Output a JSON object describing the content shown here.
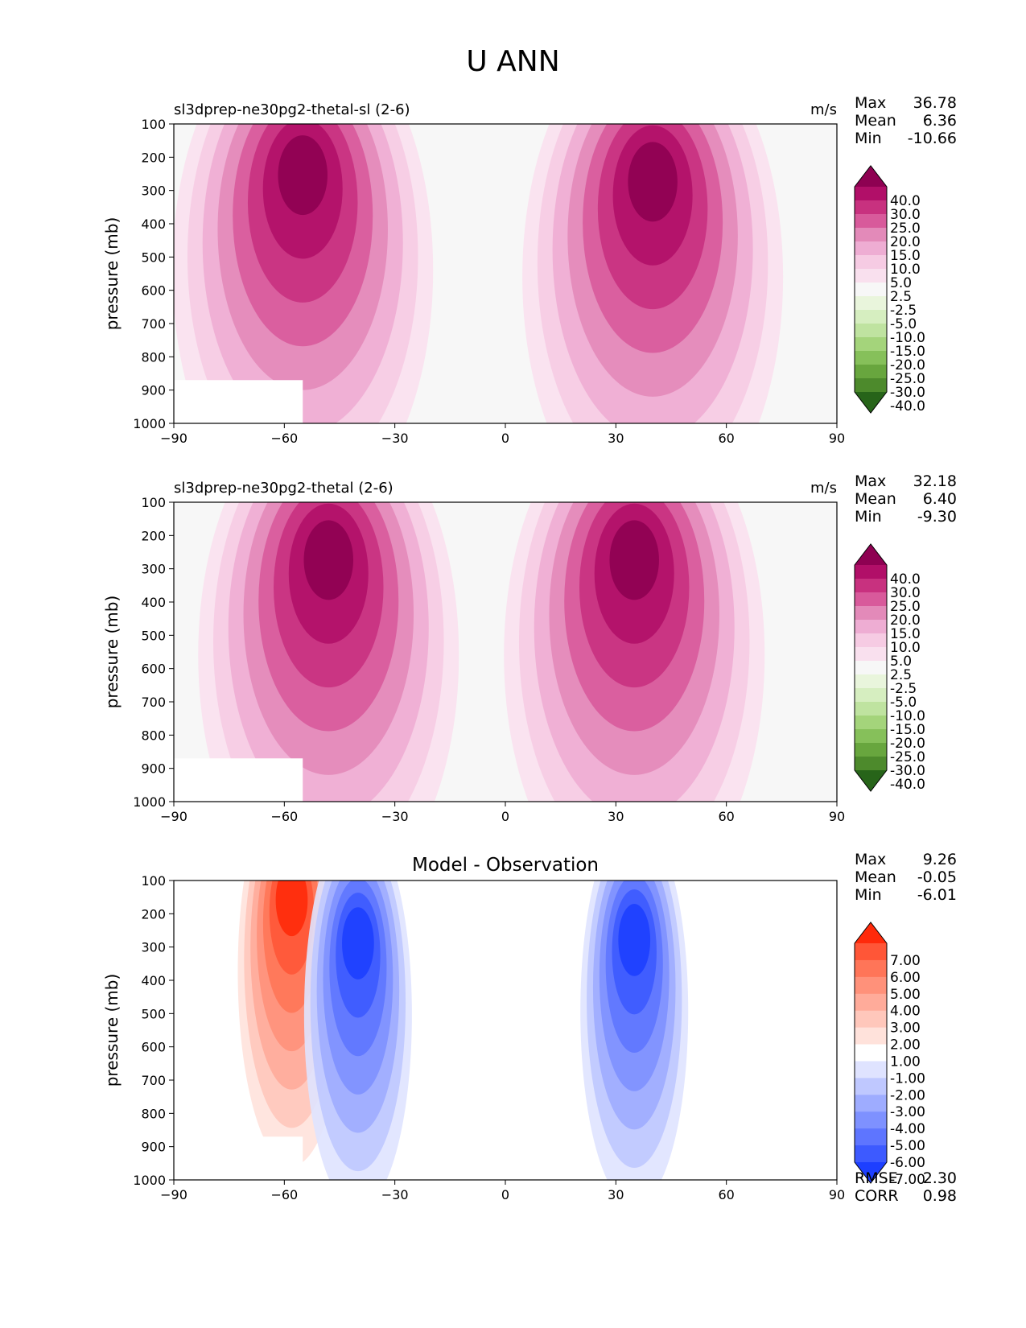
{
  "figure": {
    "title": "U ANN"
  },
  "chart_data": [
    {
      "type": "heatmap",
      "title": "sl3dprep-ne30pg2-thetal-sl (2-6)",
      "units": "m/s",
      "xlabel": "",
      "ylabel": "pressure (mb)",
      "xlim": [
        -90,
        90
      ],
      "ylim": [
        1000,
        100
      ],
      "xticks": [
        "−90",
        "−60",
        "−30",
        "0",
        "30",
        "60",
        "90"
      ],
      "yticks": [
        "100",
        "200",
        "300",
        "400",
        "500",
        "600",
        "700",
        "800",
        "900",
        "1000"
      ],
      "stats": {
        "max_label": "Max",
        "max": "36.78",
        "mean_label": "Mean",
        "mean": "6.36",
        "min_label": "Min",
        "min": "-10.66"
      },
      "colorbar": {
        "levels": [
          "40.0",
          "30.0",
          "25.0",
          "20.0",
          "15.0",
          "10.0",
          "5.0",
          "2.5",
          "-2.5",
          "-5.0",
          "-10.0",
          "-15.0",
          "-20.0",
          "-25.0",
          "-30.0",
          "-40.0"
        ],
        "colors": [
          "#8e0152",
          "#b10f68",
          "#c8317f",
          "#d85a9b",
          "#e38ab9",
          "#eeadd3",
          "#f6cbe3",
          "#f9e0ee",
          "#f7f7f7",
          "#e9f5dc",
          "#d6eec0",
          "#bfe3a0",
          "#a4d47b",
          "#86c05a",
          "#68a63e",
          "#4d8a2c",
          "#276419"
        ]
      },
      "jets": [
        {
          "sign": "positive",
          "lat": -55,
          "lev": 200,
          "peak": 36.78
        },
        {
          "sign": "positive",
          "lat": 40,
          "lev": 220,
          "peak": 27
        }
      ]
    },
    {
      "type": "heatmap",
      "title": "sl3dprep-ne30pg2-thetal (2-6)",
      "units": "m/s",
      "xlabel": "",
      "ylabel": "pressure (mb)",
      "xlim": [
        -90,
        90
      ],
      "ylim": [
        1000,
        100
      ],
      "xticks": [
        "−90",
        "−60",
        "−30",
        "0",
        "30",
        "60",
        "90"
      ],
      "yticks": [
        "100",
        "200",
        "300",
        "400",
        "500",
        "600",
        "700",
        "800",
        "900",
        "1000"
      ],
      "stats": {
        "max_label": "Max",
        "max": "32.18",
        "mean_label": "Mean",
        "mean": "6.40",
        "min_label": "Min",
        "min": "-9.30"
      },
      "colorbar": {
        "levels": [
          "40.0",
          "30.0",
          "25.0",
          "20.0",
          "15.0",
          "10.0",
          "5.0",
          "2.5",
          "-2.5",
          "-5.0",
          "-10.0",
          "-15.0",
          "-20.0",
          "-25.0",
          "-30.0",
          "-40.0"
        ],
        "colors": [
          "#8e0152",
          "#b10f68",
          "#c8317f",
          "#d85a9b",
          "#e38ab9",
          "#eeadd3",
          "#f6cbe3",
          "#f9e0ee",
          "#f7f7f7",
          "#e9f5dc",
          "#d6eec0",
          "#bfe3a0",
          "#a4d47b",
          "#86c05a",
          "#68a63e",
          "#4d8a2c",
          "#276419"
        ]
      },
      "jets": [
        {
          "sign": "positive",
          "lat": -48,
          "lev": 220,
          "peak": 32.18
        },
        {
          "sign": "positive",
          "lat": 35,
          "lev": 220,
          "peak": 30
        }
      ]
    },
    {
      "type": "heatmap",
      "title": "Model - Observation",
      "units": "",
      "xlabel": "",
      "ylabel": "pressure (mb)",
      "xlim": [
        -90,
        90
      ],
      "ylim": [
        1000,
        100
      ],
      "xticks": [
        "−90",
        "−60",
        "−30",
        "0",
        "30",
        "60",
        "90"
      ],
      "yticks": [
        "100",
        "200",
        "300",
        "400",
        "500",
        "600",
        "700",
        "800",
        "900",
        "1000"
      ],
      "stats": {
        "max_label": "Max",
        "max": "9.26",
        "mean_label": "Mean",
        "mean": "-0.05",
        "min_label": "Min",
        "min": "-6.01"
      },
      "metrics": {
        "rmse_label": "RMSE",
        "rmse": "2.30",
        "corr_label": "CORR",
        "corr": "0.98"
      },
      "colorbar": {
        "levels": [
          "7.00",
          "6.00",
          "5.00",
          "4.00",
          "3.00",
          "2.00",
          "1.00",
          "-1.00",
          "-2.00",
          "-3.00",
          "-4.00",
          "-5.00",
          "-6.00",
          "-7.00"
        ],
        "colors": [
          "#ff2a0a",
          "#ff5637",
          "#ff7558",
          "#ff917a",
          "#ffab9a",
          "#ffc7bb",
          "#ffe2db",
          "#ffffff",
          "#dfe3ff",
          "#bfc8ff",
          "#9eacff",
          "#7e91ff",
          "#5e75ff",
          "#3d5aff",
          "#1d3fff"
        ]
      },
      "jets": [
        {
          "sign": "positive",
          "lat": -58,
          "lev": 110,
          "peak": 9.26
        },
        {
          "sign": "negative",
          "lat": -40,
          "lev": 240,
          "peak": -6.01
        },
        {
          "sign": "negative",
          "lat": 35,
          "lev": 230,
          "peak": -5.5
        }
      ]
    }
  ]
}
